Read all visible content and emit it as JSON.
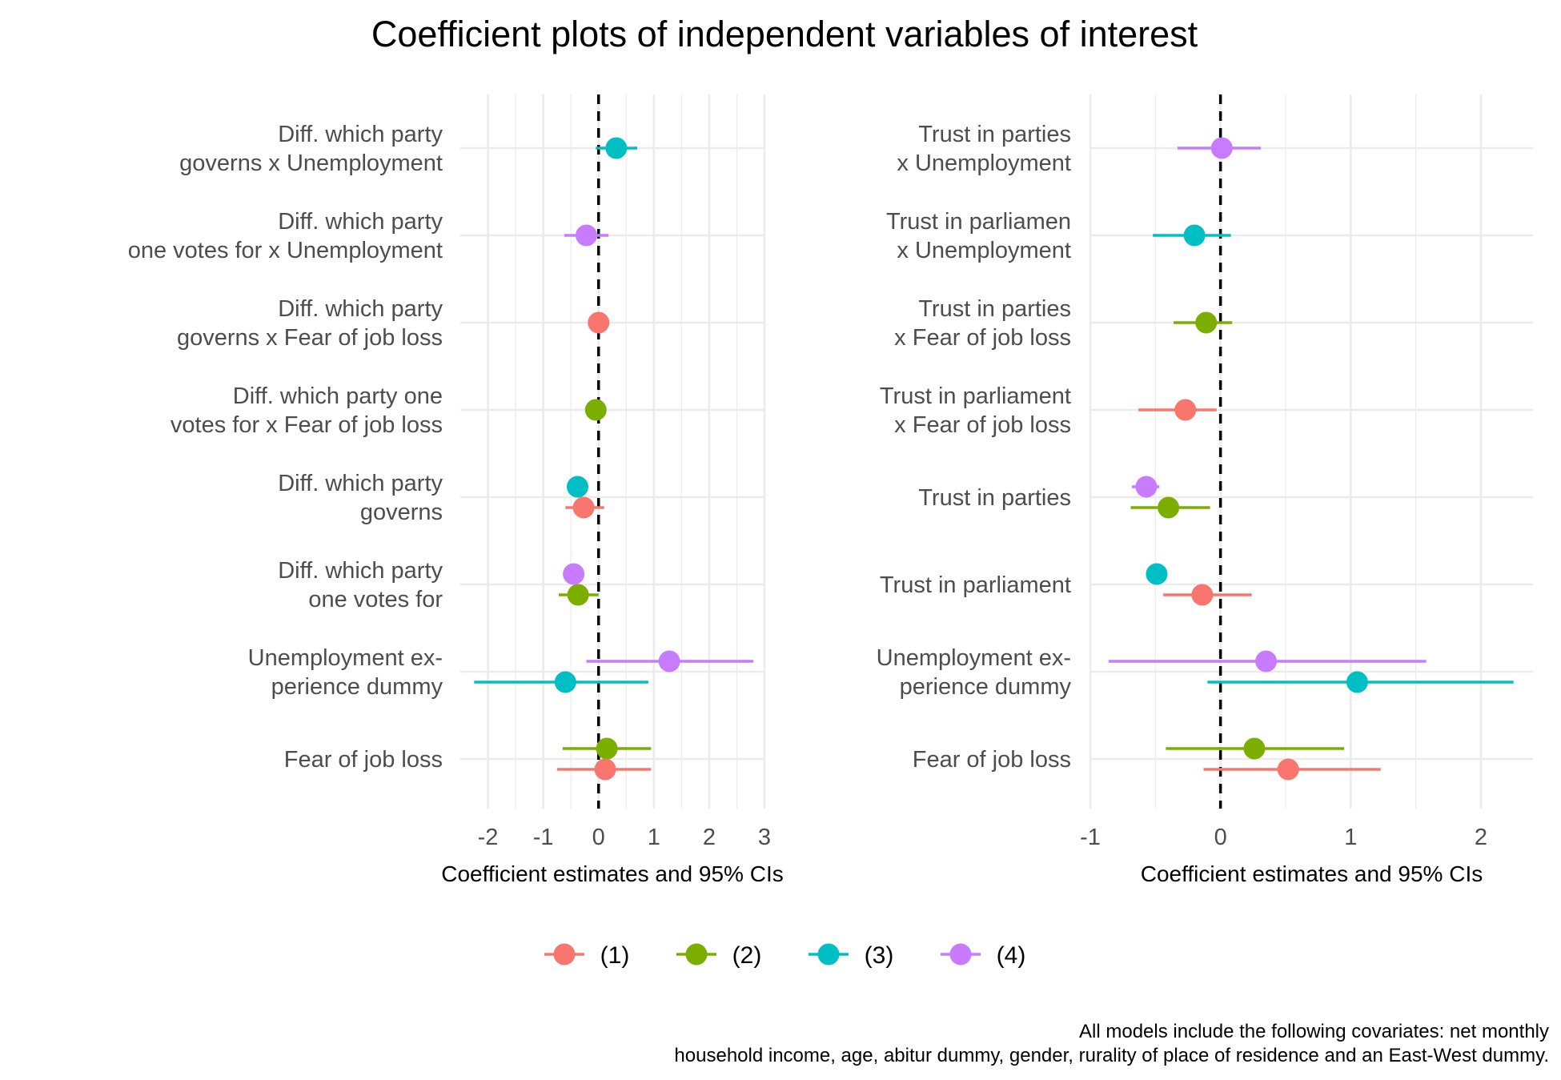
{
  "figure": {
    "title": "Coefficient plots of independent variables of interest",
    "caption_lines": [
      "All models include the following covariates: net monthly",
      "household income, age, abitur dummy, gender, rurality of place of residence and an East-West dummy."
    ]
  },
  "legend": {
    "position": "bottom",
    "items": [
      {
        "label": "(1)",
        "color": "#F8766D"
      },
      {
        "label": "(2)",
        "color": "#7CAE00"
      },
      {
        "label": "(3)",
        "color": "#00BFC4"
      },
      {
        "label": "(4)",
        "color": "#C77CFF"
      }
    ]
  },
  "chart_data": [
    {
      "type": "scatter",
      "subtype": "coefficient-plot",
      "xlabel": "Coefficient estimates and 95% CIs",
      "xlim": [
        -2.5,
        3.0
      ],
      "xticks": [
        -2,
        -1,
        0,
        1,
        2,
        3
      ],
      "xtick_labels": [
        "-2",
        "-1",
        "0",
        "1",
        "2",
        "3"
      ],
      "reference_line_x": 0,
      "grid": true,
      "categories": [
        [
          "Diff. which party",
          "governs x Unemployment"
        ],
        [
          "Diff. which party",
          "one votes for x Unemployment"
        ],
        [
          "Diff. which party",
          "governs x Fear of job loss"
        ],
        [
          "Diff. which party one",
          "votes for x Fear of job loss"
        ],
        [
          "Diff. which party",
          "governs"
        ],
        [
          "Diff. which party",
          "one votes for"
        ],
        [
          "Unemployment ex-",
          "perience dummy"
        ],
        [
          "Fear of job loss"
        ]
      ],
      "series": [
        {
          "name": "(1)",
          "points": [
            {
              "category": 2,
              "estimate": 0.0,
              "lower": -0.15,
              "upper": 0.15
            },
            {
              "category": 4,
              "estimate": -0.27,
              "lower": -0.6,
              "upper": 0.1
            },
            {
              "category": 7,
              "estimate": 0.12,
              "lower": -0.75,
              "upper": 0.95
            }
          ]
        },
        {
          "name": "(2)",
          "points": [
            {
              "category": 3,
              "estimate": -0.05,
              "lower": -0.2,
              "upper": 0.1
            },
            {
              "category": 5,
              "estimate": -0.37,
              "lower": -0.72,
              "upper": 0.0
            },
            {
              "category": 7,
              "estimate": 0.15,
              "lower": -0.65,
              "upper": 0.95
            }
          ]
        },
        {
          "name": "(3)",
          "points": [
            {
              "category": 0,
              "estimate": 0.32,
              "lower": -0.05,
              "upper": 0.7
            },
            {
              "category": 4,
              "estimate": -0.38,
              "lower": -0.45,
              "upper": -0.3
            },
            {
              "category": 6,
              "estimate": -0.6,
              "lower": -2.25,
              "upper": 0.9
            }
          ]
        },
        {
          "name": "(4)",
          "points": [
            {
              "category": 1,
              "estimate": -0.22,
              "lower": -0.62,
              "upper": 0.18
            },
            {
              "category": 5,
              "estimate": -0.45,
              "lower": -0.55,
              "upper": -0.35
            },
            {
              "category": 6,
              "estimate": 1.28,
              "lower": -0.22,
              "upper": 2.8
            }
          ]
        }
      ]
    },
    {
      "type": "scatter",
      "subtype": "coefficient-plot",
      "xlabel": "Coefficient estimates and 95% CIs",
      "xlim": [
        -1.0,
        2.4
      ],
      "xticks": [
        -1,
        0,
        1,
        2
      ],
      "xtick_labels": [
        "-1",
        "0",
        "1",
        "2"
      ],
      "reference_line_x": 0,
      "grid": true,
      "categories": [
        [
          "Trust in parties",
          "x Unemployment"
        ],
        [
          "Trust in parliamen",
          "x Unemployment"
        ],
        [
          "Trust in parties",
          "x Fear of job loss"
        ],
        [
          "Trust in parliament",
          "x Fear of job loss"
        ],
        [
          "Trust in parties"
        ],
        [
          "Trust in parliament"
        ],
        [
          "Unemployment ex-",
          "perience dummy"
        ],
        [
          "Fear of job loss"
        ]
      ],
      "series": [
        {
          "name": "(1)",
          "points": [
            {
              "category": 3,
              "estimate": -0.27,
              "lower": -0.63,
              "upper": -0.03
            },
            {
              "category": 5,
              "estimate": -0.14,
              "lower": -0.44,
              "upper": 0.24
            },
            {
              "category": 7,
              "estimate": 0.52,
              "lower": -0.13,
              "upper": 1.23
            }
          ]
        },
        {
          "name": "(2)",
          "points": [
            {
              "category": 2,
              "estimate": -0.11,
              "lower": -0.36,
              "upper": 0.09
            },
            {
              "category": 4,
              "estimate": -0.4,
              "lower": -0.69,
              "upper": -0.08
            },
            {
              "category": 7,
              "estimate": 0.26,
              "lower": -0.42,
              "upper": 0.95
            }
          ]
        },
        {
          "name": "(3)",
          "points": [
            {
              "category": 1,
              "estimate": -0.2,
              "lower": -0.52,
              "upper": 0.08
            },
            {
              "category": 5,
              "estimate": -0.49,
              "lower": -0.53,
              "upper": -0.45
            },
            {
              "category": 6,
              "estimate": 1.05,
              "lower": -0.1,
              "upper": 2.25
            }
          ]
        },
        {
          "name": "(4)",
          "points": [
            {
              "category": 0,
              "estimate": 0.01,
              "lower": -0.33,
              "upper": 0.31
            },
            {
              "category": 4,
              "estimate": -0.57,
              "lower": -0.68,
              "upper": -0.47
            },
            {
              "category": 6,
              "estimate": 0.35,
              "lower": -0.86,
              "upper": 1.58
            }
          ]
        }
      ]
    }
  ]
}
